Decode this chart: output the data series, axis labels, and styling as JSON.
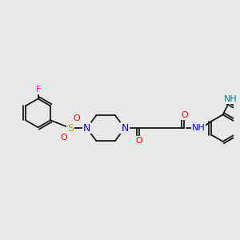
{
  "background_color": "#e8e8e8",
  "bond_color": "#1a1a1a",
  "bond_width": 1.3,
  "figsize": [
    3.0,
    3.0
  ],
  "dpi": 100,
  "atoms": {
    "F": {
      "color": "#ff00cc"
    },
    "S": {
      "color": "#aaaa00"
    },
    "N": {
      "color": "#0000ff"
    },
    "O": {
      "color": "#ff0000"
    },
    "NH": {
      "color": "#008080"
    },
    "H": {
      "color": "#008080"
    }
  }
}
